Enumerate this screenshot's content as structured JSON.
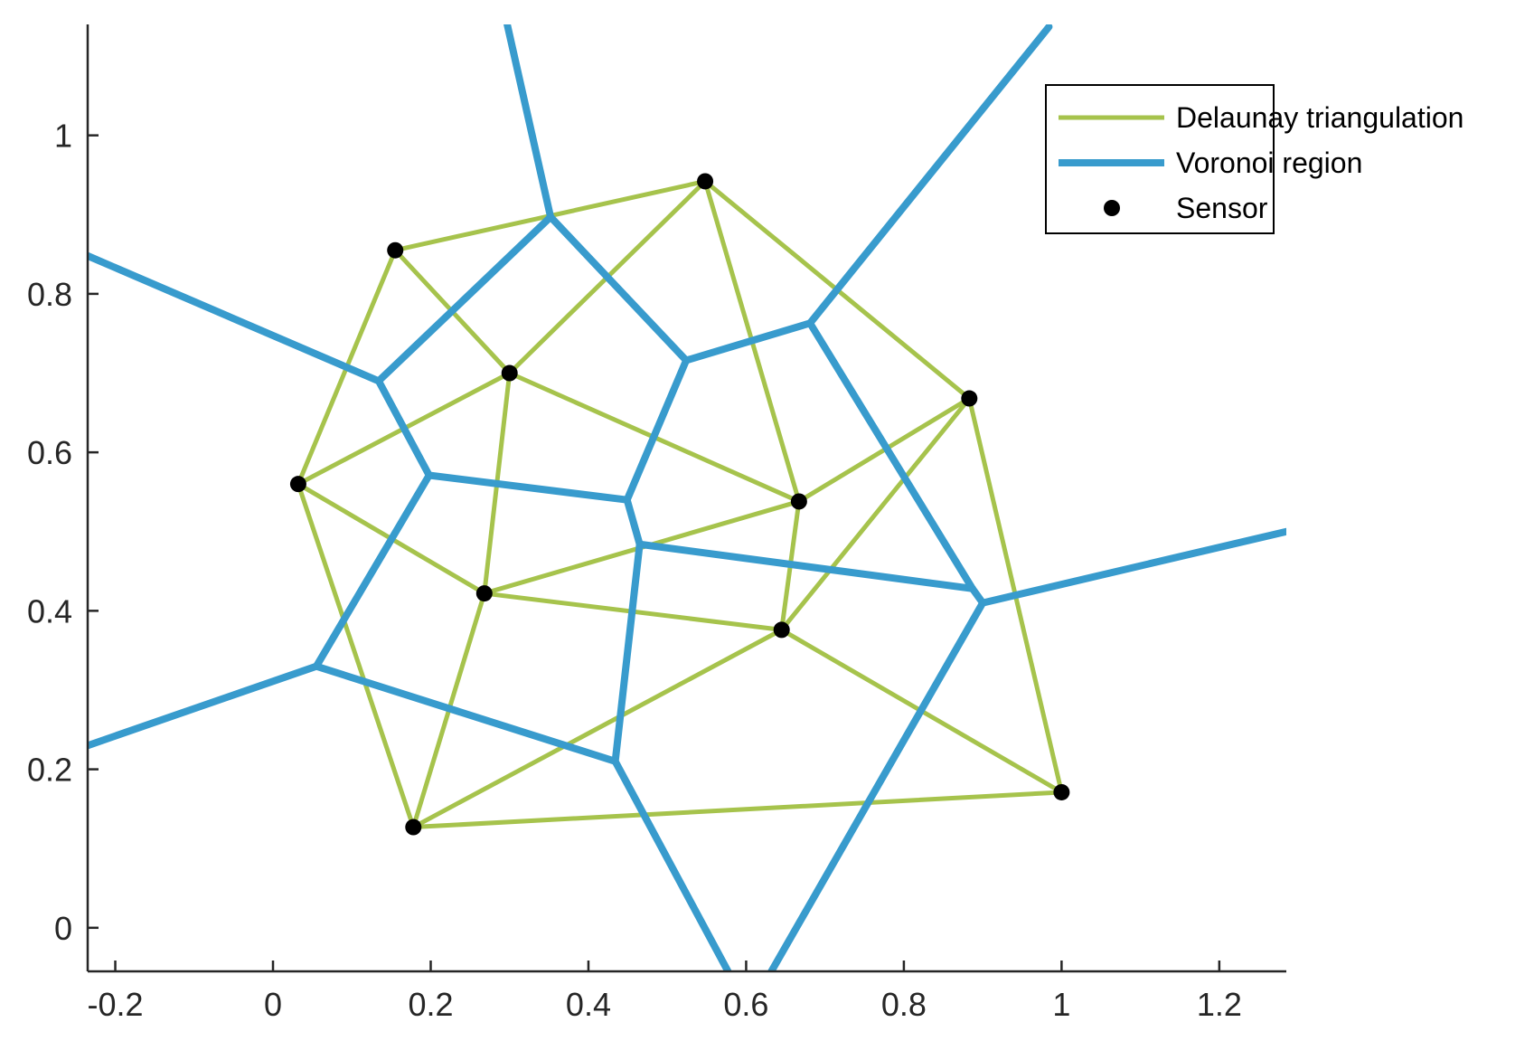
{
  "chart_data": {
    "type": "scatter",
    "title": "",
    "xlabel": "",
    "ylabel": "",
    "xlim": [
      -0.235,
      1.285
    ],
    "ylim": [
      -0.055,
      1.14
    ],
    "grid": false,
    "legend_position": "top-right",
    "x_ticks": [
      -0.2,
      0,
      0.2,
      0.4,
      0.6,
      0.8,
      1,
      1.2
    ],
    "x_tick_labels": [
      "-0.2",
      "0",
      "0.2",
      "0.4",
      "0.6",
      "0.8",
      "1",
      "1.2"
    ],
    "y_ticks": [
      0,
      0.2,
      0.4,
      0.6,
      0.8,
      1
    ],
    "y_tick_labels": [
      "0",
      "0.2",
      "0.4",
      "0.6",
      "0.8",
      "1"
    ],
    "sensors": [
      [
        0.155,
        0.855
      ],
      [
        0.548,
        0.942
      ],
      [
        0.3,
        0.7
      ],
      [
        0.883,
        0.668
      ],
      [
        0.032,
        0.56
      ],
      [
        0.667,
        0.538
      ],
      [
        0.268,
        0.422
      ],
      [
        0.645,
        0.376
      ],
      [
        0.178,
        0.127
      ],
      [
        1.0,
        0.171
      ]
    ],
    "delaunay_edges": [
      [
        0,
        1
      ],
      [
        0,
        2
      ],
      [
        0,
        4
      ],
      [
        1,
        2
      ],
      [
        1,
        5
      ],
      [
        1,
        3
      ],
      [
        2,
        4
      ],
      [
        2,
        6
      ],
      [
        2,
        5
      ],
      [
        3,
        5
      ],
      [
        3,
        7
      ],
      [
        3,
        9
      ],
      [
        4,
        6
      ],
      [
        4,
        8
      ],
      [
        6,
        5
      ],
      [
        6,
        7
      ],
      [
        6,
        8
      ],
      [
        5,
        7
      ],
      [
        7,
        8
      ],
      [
        7,
        9
      ],
      [
        8,
        9
      ]
    ],
    "voronoi_vertices": [
      [
        0.352,
        0.897
      ],
      [
        0.134,
        0.69
      ],
      [
        0.198,
        0.571
      ],
      [
        0.449,
        0.54
      ],
      [
        0.524,
        0.716
      ],
      [
        0.681,
        0.763
      ],
      [
        0.465,
        0.484
      ],
      [
        0.887,
        0.428
      ],
      [
        0.9,
        0.41
      ],
      [
        0.434,
        0.21
      ],
      [
        0.055,
        0.33
      ]
    ],
    "voronoi_edges": [
      [
        [
          0.297,
          1.14
        ],
        [
          0.352,
          0.897
        ]
      ],
      [
        [
          0.352,
          0.897
        ],
        [
          0.134,
          0.69
        ]
      ],
      [
        [
          0.352,
          0.897
        ],
        [
          0.524,
          0.716
        ]
      ],
      [
        [
          -0.235,
          0.848
        ],
        [
          0.134,
          0.69
        ]
      ],
      [
        [
          0.134,
          0.69
        ],
        [
          0.198,
          0.571
        ]
      ],
      [
        [
          0.198,
          0.571
        ],
        [
          0.449,
          0.54
        ]
      ],
      [
        [
          0.198,
          0.571
        ],
        [
          0.055,
          0.33
        ]
      ],
      [
        [
          0.449,
          0.54
        ],
        [
          0.524,
          0.716
        ]
      ],
      [
        [
          0.449,
          0.54
        ],
        [
          0.465,
          0.484
        ]
      ],
      [
        [
          0.524,
          0.716
        ],
        [
          0.681,
          0.763
        ]
      ],
      [
        [
          0.681,
          0.763
        ],
        [
          0.984,
          1.137
        ]
      ],
      [
        [
          0.681,
          0.763
        ],
        [
          0.887,
          0.428
        ]
      ],
      [
        [
          0.887,
          0.428
        ],
        [
          0.9,
          0.41
        ]
      ],
      [
        [
          0.465,
          0.484
        ],
        [
          0.887,
          0.428
        ]
      ],
      [
        [
          0.9,
          0.41
        ],
        [
          1.285,
          0.5
        ]
      ],
      [
        [
          0.9,
          0.41
        ],
        [
          0.632,
          -0.055
        ]
      ],
      [
        [
          0.465,
          0.484
        ],
        [
          0.434,
          0.21
        ]
      ],
      [
        [
          0.434,
          0.21
        ],
        [
          0.055,
          0.33
        ]
      ],
      [
        [
          -0.235,
          0.23
        ],
        [
          0.055,
          0.33
        ]
      ],
      [
        [
          0.434,
          0.21
        ],
        [
          0.577,
          -0.055
        ]
      ]
    ],
    "legend": [
      {
        "label": "Delaunay triangulation",
        "kind": "line",
        "color": "#a6c34c"
      },
      {
        "label": "Voronoi region",
        "kind": "line",
        "color": "#389bcd"
      },
      {
        "label": "Sensor",
        "kind": "marker",
        "color": "#000000"
      }
    ],
    "colors": {
      "delaunay": "#a6c34c",
      "voronoi": "#389bcd",
      "sensor": "#000000",
      "axis": "#262626"
    }
  }
}
